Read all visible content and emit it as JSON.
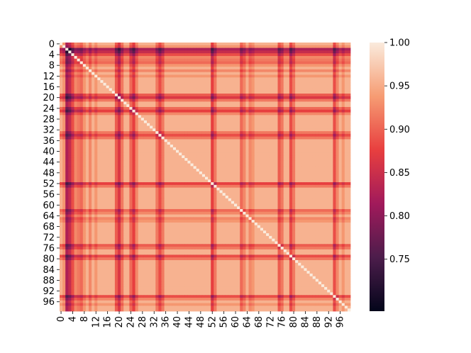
{
  "chart_data": {
    "type": "heatmap",
    "title": "",
    "xlabel": "",
    "ylabel": "",
    "size": 100,
    "x_tick_labels": [
      "0",
      "4",
      "8",
      "12",
      "16",
      "20",
      "24",
      "28",
      "32",
      "36",
      "40",
      "44",
      "48",
      "52",
      "56",
      "60",
      "64",
      "68",
      "72",
      "76",
      "80",
      "84",
      "88",
      "92",
      "96"
    ],
    "y_tick_labels": [
      "0",
      "4",
      "8",
      "12",
      "16",
      "20",
      "24",
      "28",
      "32",
      "36",
      "40",
      "44",
      "48",
      "52",
      "56",
      "60",
      "64",
      "68",
      "72",
      "76",
      "80",
      "84",
      "88",
      "92",
      "96"
    ],
    "diagonal_value": 1.0,
    "value_range": [
      0.69,
      1.0
    ],
    "colormap": "rocket",
    "colorbar": {
      "ticks": [
        0.75,
        0.8,
        0.85,
        0.9,
        0.95,
        1.0
      ],
      "tick_labels": [
        "0.75",
        "0.80",
        "0.85",
        "0.90",
        "0.95",
        "1.00"
      ]
    },
    "base_similarity": 0.955,
    "low_similarity_indices": [
      {
        "index": 1,
        "penalty": 0.02
      },
      {
        "index": 2,
        "penalty": 0.13
      },
      {
        "index": 3,
        "penalty": 0.11
      },
      {
        "index": 4,
        "penalty": 0.07
      },
      {
        "index": 5,
        "penalty": 0.03
      },
      {
        "index": 6,
        "penalty": 0.04
      },
      {
        "index": 7,
        "penalty": 0.05
      },
      {
        "index": 8,
        "penalty": 0.02
      },
      {
        "index": 10,
        "penalty": 0.03
      },
      {
        "index": 12,
        "penalty": 0.02
      },
      {
        "index": 19,
        "penalty": 0.06
      },
      {
        "index": 20,
        "penalty": 0.09
      },
      {
        "index": 21,
        "penalty": 0.04
      },
      {
        "index": 24,
        "penalty": 0.05
      },
      {
        "index": 25,
        "penalty": 0.08
      },
      {
        "index": 26,
        "penalty": 0.03
      },
      {
        "index": 33,
        "penalty": 0.04
      },
      {
        "index": 34,
        "penalty": 0.07
      },
      {
        "index": 35,
        "penalty": 0.04
      },
      {
        "index": 52,
        "penalty": 0.08
      },
      {
        "index": 53,
        "penalty": 0.04
      },
      {
        "index": 62,
        "penalty": 0.05
      },
      {
        "index": 63,
        "penalty": 0.03
      },
      {
        "index": 65,
        "penalty": 0.03
      },
      {
        "index": 66,
        "penalty": 0.02
      },
      {
        "index": 75,
        "penalty": 0.06
      },
      {
        "index": 76,
        "penalty": 0.04
      },
      {
        "index": 79,
        "penalty": 0.07
      },
      {
        "index": 80,
        "penalty": 0.04
      },
      {
        "index": 94,
        "penalty": 0.07
      },
      {
        "index": 95,
        "penalty": 0.03
      },
      {
        "index": 97,
        "penalty": 0.02
      }
    ]
  }
}
